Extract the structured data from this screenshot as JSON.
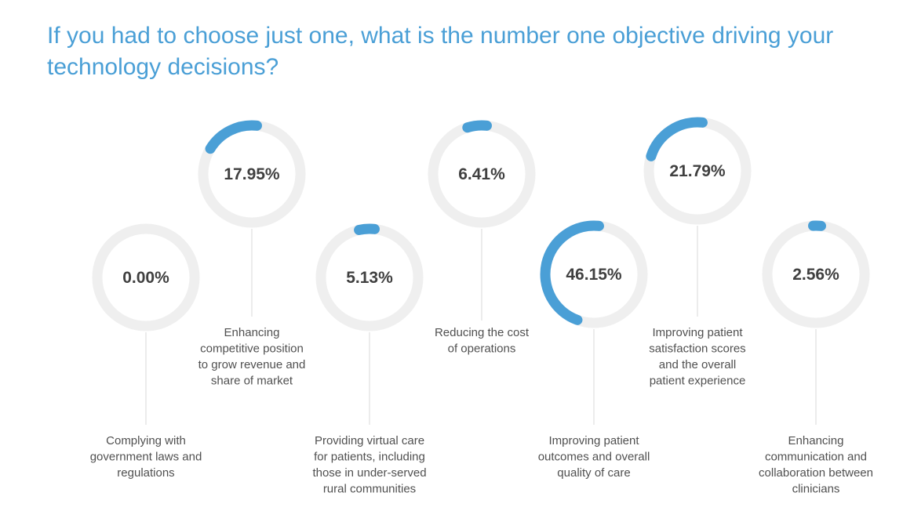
{
  "title": "If you had to choose just one, what is the number one objective driving your technology decisions?",
  "colors": {
    "title": "#4a9fd6",
    "arc": "#4a9fd6",
    "ring": "#efefef",
    "connector": "#e6e6e6",
    "value_text": "#404040",
    "label_text": "#505050"
  },
  "chart_data": {
    "type": "donut-gauges",
    "title": "If you had to choose just one, what is the number one objective driving your technology decisions?",
    "unit": "%",
    "items": [
      {
        "value": 0.0,
        "value_label": "0.00%",
        "label": [
          "Complying with",
          "government laws and",
          "regulations"
        ]
      },
      {
        "value": 17.95,
        "value_label": "17.95%",
        "label": [
          "Enhancing",
          "competitive position",
          "to grow revenue and",
          "share of market"
        ]
      },
      {
        "value": 5.13,
        "value_label": "5.13%",
        "label": [
          "Providing virtual care",
          "for patients, including",
          "those in under-served",
          "rural communities"
        ]
      },
      {
        "value": 6.41,
        "value_label": "6.41%",
        "label": [
          "Reducing the cost",
          "of operations"
        ]
      },
      {
        "value": 46.15,
        "value_label": "46.15%",
        "label": [
          "Improving patient",
          "outcomes and overall",
          "quality of care"
        ]
      },
      {
        "value": 21.79,
        "value_label": "21.79%",
        "label": [
          "Improving patient",
          "satisfaction scores",
          "and the overall",
          "patient experience"
        ]
      },
      {
        "value": 2.56,
        "value_label": "2.56%",
        "label": [
          "Enhancing",
          "communication and",
          "collaboration between",
          "clinicians"
        ]
      }
    ]
  }
}
